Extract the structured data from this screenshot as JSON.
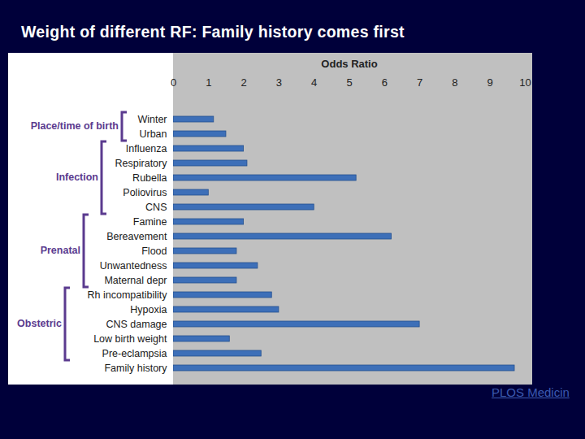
{
  "chart_data": {
    "type": "bar",
    "orientation": "horizontal",
    "title": "Weight of different RF: Family history comes first",
    "x_label": "Odds Ratio",
    "categories": [
      "Winter",
      "Urban",
      "Influenza",
      "Respiratory",
      "Rubella",
      "Poliovirus",
      "CNS",
      "Famine",
      "Bereavement",
      "Flood",
      "Unwantedness",
      "Maternal depr",
      "Rh incompatibility",
      "Hypoxia",
      "CNS damage",
      "Low birth weight",
      "Pre-eclampsia",
      "Family history"
    ],
    "values": [
      1.15,
      1.5,
      2.0,
      2.1,
      5.2,
      1.0,
      4.0,
      2.0,
      6.2,
      1.8,
      2.4,
      1.8,
      2.8,
      3.0,
      7.0,
      1.6,
      2.5,
      9.7
    ],
    "color": "#3d6fb8",
    "xlim": [
      0,
      10
    ],
    "xticks": [
      0,
      1,
      2,
      3,
      4,
      5,
      6,
      7,
      8,
      9,
      10
    ],
    "grid": false,
    "groups": [
      {
        "label": "Place/time of birth",
        "members": [
          "Winter",
          "Urban"
        ]
      },
      {
        "label": "Infection",
        "members": [
          "Influenza",
          "Respiratory",
          "Rubella",
          "Poliovirus",
          "CNS"
        ]
      },
      {
        "label": "Prenatal",
        "members": [
          "Famine",
          "Bereavement",
          "Flood",
          "Unwantedness",
          "Maternal depr"
        ]
      },
      {
        "label": "Obstetric",
        "members": [
          "Rh incompatibility",
          "Hypoxia",
          "CNS damage",
          "Low birth weight",
          "Pre-eclampsia"
        ]
      }
    ],
    "source": "PLOS Medicin"
  }
}
